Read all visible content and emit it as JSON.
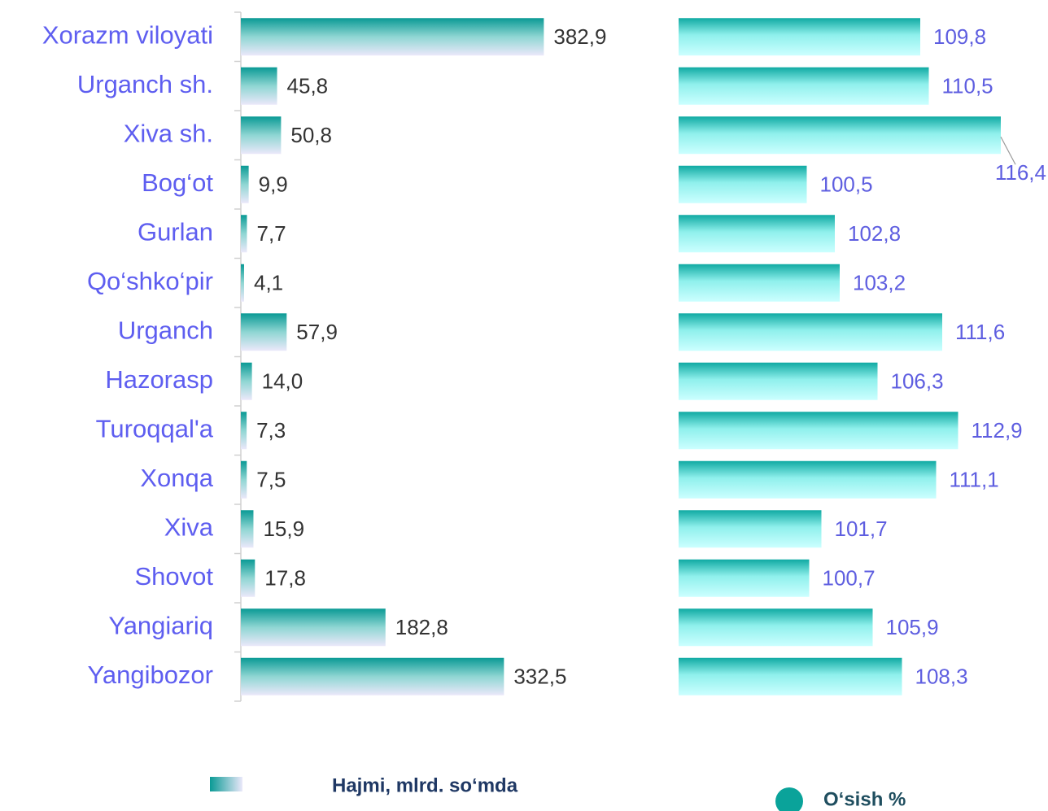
{
  "chart_data": {
    "type": "bar",
    "categories": [
      "Xorazm viloyati",
      "Urganch sh.",
      "Xiva sh.",
      "Bog‘ot",
      "Gurlan",
      "Qo‘shko‘pir",
      "Urganch",
      "Hazorasp",
      "Turoqqal'a",
      "Xonqa",
      "Xiva",
      "Shovot",
      "Yangiariq",
      "Yangibozor"
    ],
    "series": [
      {
        "name": "Hajmi, mlrd. so‘mda",
        "color": "#0a9a95",
        "values": [
          382.9,
          45.8,
          50.8,
          9.9,
          7.7,
          4.1,
          57.9,
          14.0,
          7.3,
          7.5,
          15.9,
          17.8,
          182.8,
          332.5
        ],
        "value_labels": [
          "382,9",
          "45,8",
          "50,8",
          "9,9",
          "7,7",
          "4,1",
          "57,9",
          "14,0",
          "7,3",
          "7,5",
          "15,9",
          "17,8",
          "182,8",
          "332,5"
        ],
        "xlim": [
          0,
          400
        ]
      },
      {
        "name": "O‘sish %",
        "color": "#10aaa3",
        "values": [
          109.8,
          110.5,
          116.4,
          100.5,
          102.8,
          103.2,
          111.6,
          106.3,
          112.9,
          111.1,
          101.7,
          100.7,
          105.9,
          108.3
        ],
        "value_labels": [
          "109,8",
          "110,5",
          "116,4",
          "100,5",
          "102,8",
          "103,2",
          "111,6",
          "106,3",
          "112,9",
          "111,1",
          "101,7",
          "100,7",
          "105,9",
          "108,3"
        ],
        "xlim": [
          90,
          120
        ]
      }
    ]
  }
}
